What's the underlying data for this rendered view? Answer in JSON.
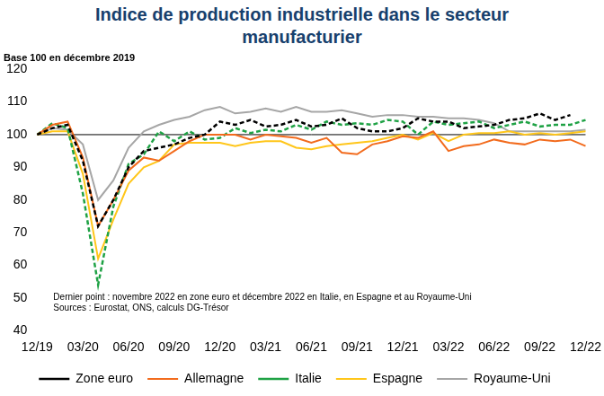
{
  "chart_data": {
    "type": "line",
    "title": "Indice de production industrielle dans le secteur manufacturier",
    "subtitle": "Base 100 en décembre 2019",
    "annotations": [
      "Dernier point : novembre 2022 en zone euro et décembre 2022 en Italie, en Espagne et au Royaume-Uni",
      "Sources : Eurostat, ONS, calculs DG-Trésor"
    ],
    "categories": [
      "12/19",
      null,
      null,
      "03/20",
      null,
      null,
      "06/20",
      null,
      null,
      "09/20",
      null,
      null,
      "12/20",
      null,
      null,
      "03/21",
      null,
      null,
      "06/21",
      null,
      null,
      "09/21",
      null,
      null,
      "12/21",
      null,
      null,
      "03/22",
      null,
      null,
      "06/22",
      null,
      null,
      "09/22",
      null,
      null,
      "12/22"
    ],
    "series": [
      {
        "name": "Zone euro",
        "color": "#000000",
        "line_style": "dashed",
        "values": [
          100,
          102,
          103,
          92,
          72,
          80,
          90,
          95,
          96,
          97,
          99,
          100,
          104,
          103,
          104.5,
          102.5,
          103,
          104.5,
          102.5,
          103,
          105,
          102,
          101,
          101,
          102,
          105,
          104,
          104,
          102,
          102.5,
          103,
          104.5,
          105,
          106.5,
          104.5,
          106,
          null
        ]
      },
      {
        "name": "Allemagne",
        "color": "#F26B1D",
        "line_style": "solid",
        "values": [
          100,
          103,
          104,
          93,
          72,
          80,
          89,
          93,
          92,
          95,
          98,
          100,
          100,
          100,
          98.5,
          100,
          99.5,
          99,
          97.5,
          99,
          94.5,
          94,
          97,
          98,
          99.5,
          99,
          101,
          95,
          96.5,
          97,
          98.5,
          97.5,
          97,
          98.5,
          98,
          98.5,
          96.5
        ]
      },
      {
        "name": "Italie",
        "color": "#1FA245",
        "line_style": "dashed",
        "values": [
          100,
          103.5,
          102,
          82,
          54,
          78,
          91,
          94,
          101,
          98,
          101,
          98.5,
          99,
          102,
          100.5,
          101.5,
          101,
          103,
          101.5,
          104,
          103,
          103.5,
          103,
          104.5,
          104,
          100,
          104,
          103,
          103.5,
          104,
          102,
          103,
          104,
          102.5,
          103,
          103,
          104.5
        ]
      },
      {
        "name": "Espagne",
        "color": "#FFC61A",
        "line_style": "solid",
        "values": [
          100,
          101,
          101,
          88,
          62,
          74,
          85,
          90,
          92,
          97,
          97.5,
          97.5,
          97.5,
          96.5,
          97.5,
          98,
          98,
          96,
          95.5,
          96.5,
          97,
          97.5,
          98,
          99,
          100,
          98.5,
          100.5,
          98,
          100,
          100.5,
          100.5,
          101,
          100,
          100.5,
          100,
          100.5,
          101
        ]
      },
      {
        "name": "Royaume-Uni",
        "color": "#A6A6A6",
        "line_style": "solid",
        "values": [
          100,
          102,
          101.5,
          97,
          80,
          86,
          96,
          101,
          103,
          104.5,
          105.5,
          107.5,
          108.5,
          106.5,
          107,
          108,
          107,
          108.5,
          107,
          107,
          107.5,
          106.5,
          105.5,
          106,
          106,
          105.5,
          105.5,
          105,
          105,
          104.5,
          103.5,
          101,
          101,
          101,
          101,
          101,
          101.5
        ]
      }
    ],
    "ylim": [
      40,
      120
    ],
    "yticks": [
      40,
      50,
      60,
      70,
      80,
      90,
      100,
      110,
      120
    ],
    "reference_line": 100,
    "grid": false,
    "legend": "bottom"
  }
}
